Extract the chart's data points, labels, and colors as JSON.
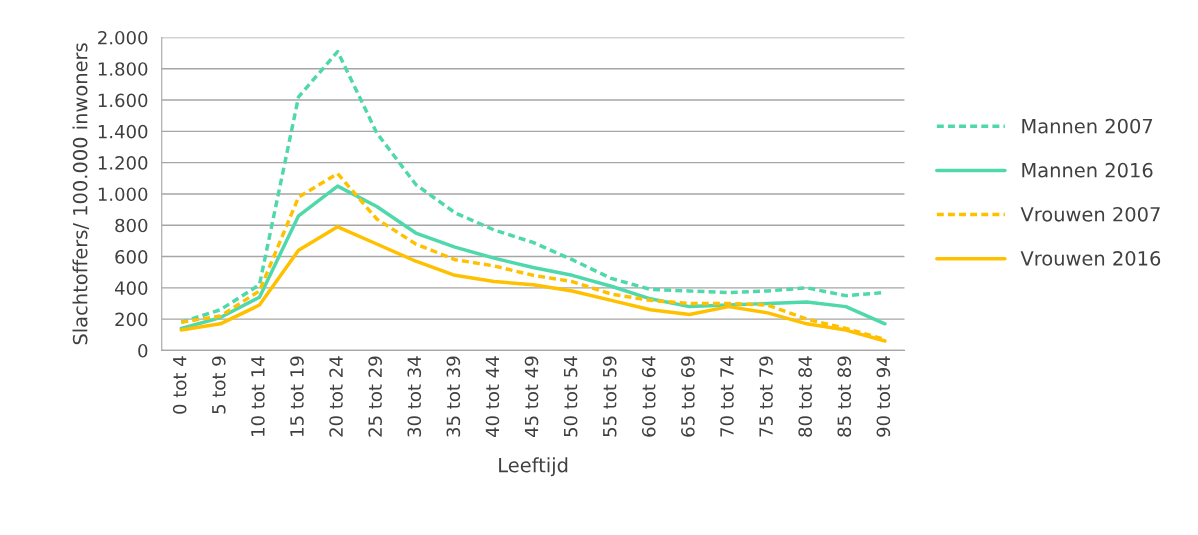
{
  "chart_data": {
    "type": "line",
    "xlabel": "Leeftijd",
    "ylabel": "Slachtoffers/ 100.000 inwoners",
    "categories": [
      "0 tot 4",
      "5 tot 9",
      "10 tot 14",
      "15 tot 19",
      "20 tot 24",
      "25 tot 29",
      "30 tot 34",
      "35 tot 39",
      "40 tot 44",
      "45 tot 49",
      "50 tot 54",
      "55 tot 59",
      "60 tot 64",
      "65 tot 69",
      "70 tot 74",
      "75 tot 79",
      "80 tot 84",
      "85 tot 89",
      "90 tot 94"
    ],
    "series": [
      {
        "name": "Mannen 2007",
        "color": "#4fd8ab",
        "line_style": "dashed",
        "values": [
          180,
          260,
          420,
          1620,
          1910,
          1390,
          1060,
          880,
          770,
          690,
          580,
          460,
          390,
          380,
          370,
          380,
          400,
          350,
          370
        ]
      },
      {
        "name": "Mannen 2016",
        "color": "#4fd8ab",
        "line_style": "solid",
        "values": [
          140,
          210,
          340,
          860,
          1050,
          920,
          750,
          660,
          590,
          530,
          480,
          410,
          330,
          280,
          290,
          300,
          310,
          280,
          170
        ]
      },
      {
        "name": "Vrouwen 2007",
        "color": "#ffc000",
        "line_style": "dashed",
        "values": [
          180,
          220,
          380,
          980,
          1130,
          840,
          680,
          580,
          540,
          480,
          440,
          360,
          320,
          300,
          300,
          290,
          200,
          140,
          70
        ]
      },
      {
        "name": "Vrouwen 2016",
        "color": "#ffc000",
        "line_style": "solid",
        "values": [
          130,
          170,
          290,
          640,
          790,
          680,
          570,
          480,
          440,
          420,
          380,
          320,
          260,
          230,
          280,
          240,
          170,
          130,
          60
        ]
      }
    ],
    "ylim": [
      0,
      2000
    ],
    "yticks": [
      0,
      200,
      400,
      600,
      800,
      {
        "value": 1000,
        "label": "1.000"
      },
      {
        "value": 1200,
        "label": "1.200"
      },
      {
        "value": 1400,
        "label": "1.400"
      },
      {
        "value": 1600,
        "label": "1.600"
      },
      {
        "value": 1800,
        "label": "1.800"
      },
      {
        "value": 2000,
        "label": "2.000"
      }
    ],
    "grid": "y",
    "legend": "right",
    "marker": "none"
  }
}
